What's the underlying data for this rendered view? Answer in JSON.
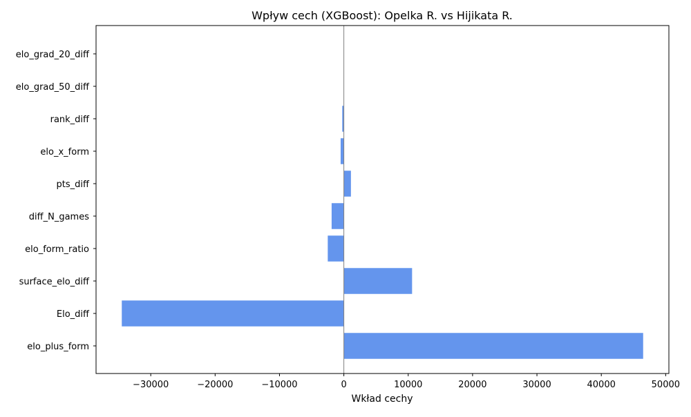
{
  "chart_data": {
    "type": "bar",
    "orientation": "horizontal",
    "title": "Wpływ cech (XGBoost): Opelka R. vs Hijikata R.",
    "xlabel": "Wkład cechy",
    "ylabel": "",
    "categories": [
      "elo_grad_20_diff",
      "elo_grad_50_diff",
      "rank_diff",
      "elo_x_form",
      "pts_diff",
      "diff_N_games",
      "elo_form_ratio",
      "surface_elo_diff",
      "Elo_diff",
      "elo_plus_form"
    ],
    "values": [
      0,
      0,
      -250,
      -500,
      1100,
      -1900,
      -2500,
      10600,
      -34500,
      46500
    ],
    "xlim": [
      -38500,
      50500
    ],
    "xticks": [
      -30000,
      -20000,
      -10000,
      0,
      10000,
      20000,
      30000,
      40000,
      50000
    ],
    "xtick_labels": [
      "−30000",
      "−20000",
      "−10000",
      "0",
      "10000",
      "20000",
      "30000",
      "40000",
      "50000"
    ],
    "bar_color": "#6495ED",
    "zero_line_color": "#808080",
    "grid": false,
    "legend": "none"
  }
}
